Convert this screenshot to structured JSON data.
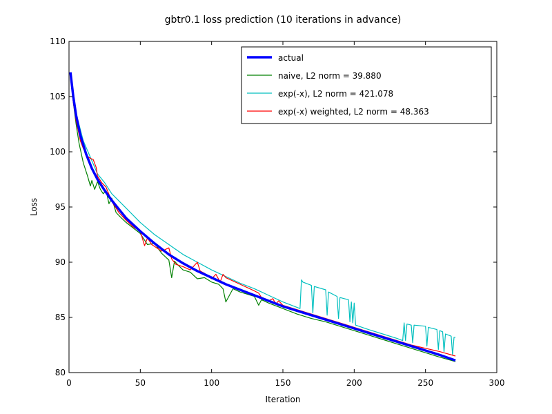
{
  "chart_data": {
    "type": "line",
    "title": "gbtr0.1 loss prediction (10 iterations in advance)",
    "xlabel": "Iteration",
    "ylabel": "Loss",
    "xlim": [
      0,
      300
    ],
    "ylim": [
      80,
      110
    ],
    "xticks": [
      0,
      50,
      100,
      150,
      200,
      250,
      300
    ],
    "yticks": [
      80,
      85,
      90,
      95,
      100,
      105,
      110
    ],
    "grid": false,
    "legend_position": "top-right",
    "series": [
      {
        "name": "actual",
        "color": "#0000ff",
        "x": [
          1,
          3,
          5,
          8,
          12,
          16,
          20,
          25,
          30,
          35,
          40,
          50,
          60,
          70,
          80,
          90,
          100,
          110,
          120,
          130,
          140,
          150,
          160,
          170,
          180,
          190,
          200,
          210,
          220,
          230,
          240,
          250,
          260,
          271
        ],
        "y": [
          107.2,
          105.0,
          103.3,
          101.5,
          99.8,
          98.5,
          97.5,
          96.5,
          95.6,
          94.8,
          94.0,
          92.8,
          91.7,
          90.7,
          89.9,
          89.2,
          88.6,
          88.0,
          87.5,
          87.0,
          86.5,
          86.0,
          85.6,
          85.2,
          84.8,
          84.4,
          84.0,
          83.6,
          83.2,
          82.8,
          82.4,
          82.0,
          81.6,
          81.1
        ]
      },
      {
        "name": "naive, L2 norm = 39.880",
        "color": "#008000",
        "x": [
          1,
          3,
          5,
          7,
          10,
          13,
          15,
          16,
          18,
          20,
          22,
          24,
          26,
          28,
          30,
          33,
          36,
          40,
          45,
          50,
          55,
          60,
          65,
          70,
          72,
          74,
          76,
          80,
          85,
          90,
          95,
          100,
          105,
          108,
          110,
          115,
          120,
          130,
          133,
          135,
          140,
          150,
          160,
          170,
          180,
          190,
          200,
          210,
          220,
          230,
          240,
          250,
          260,
          271
        ],
        "y": [
          107.0,
          104.5,
          102.5,
          100.8,
          99.0,
          97.8,
          96.9,
          97.4,
          96.6,
          97.3,
          96.6,
          96.2,
          96.5,
          95.3,
          95.8,
          94.5,
          94.1,
          93.6,
          93.1,
          92.6,
          91.6,
          91.7,
          90.8,
          90.2,
          88.6,
          90.1,
          89.8,
          89.3,
          89.1,
          88.5,
          88.6,
          88.2,
          88.0,
          87.6,
          86.4,
          87.6,
          87.3,
          86.9,
          86.1,
          86.6,
          86.3,
          85.8,
          85.3,
          84.9,
          84.6,
          84.2,
          83.8,
          83.4,
          83.0,
          82.6,
          82.2,
          81.8,
          81.4,
          81.0
        ]
      },
      {
        "name": "exp(-x), L2 norm = 421.078",
        "color": "#00bfbf",
        "x": [
          1,
          5,
          10,
          15,
          20,
          25,
          30,
          40,
          50,
          60,
          70,
          80,
          90,
          100,
          110,
          120,
          130,
          140,
          150,
          160,
          162,
          163,
          164,
          170,
          171,
          172,
          180,
          181,
          182,
          188,
          189,
          190,
          196,
          197,
          198,
          199,
          200,
          201,
          210,
          220,
          230,
          234,
          235,
          236,
          237,
          240,
          241,
          242,
          250,
          251,
          252,
          258,
          259,
          260,
          262,
          263,
          264,
          268,
          269,
          270,
          271
        ],
        "y": [
          107.0,
          103.5,
          101.0,
          99.5,
          98.0,
          97.2,
          96.2,
          94.9,
          93.6,
          92.5,
          91.6,
          90.7,
          90.0,
          89.3,
          88.7,
          88.1,
          87.6,
          87.0,
          86.4,
          85.9,
          85.8,
          88.4,
          88.2,
          87.9,
          85.4,
          87.8,
          87.5,
          85.2,
          87.3,
          86.9,
          84.9,
          86.8,
          86.6,
          84.6,
          86.4,
          84.5,
          86.3,
          84.3,
          83.9,
          83.5,
          83.1,
          82.9,
          84.5,
          82.9,
          84.4,
          84.3,
          82.7,
          84.3,
          84.2,
          82.4,
          84.1,
          83.9,
          82.1,
          83.8,
          83.7,
          81.9,
          83.5,
          83.3,
          81.6,
          83.2,
          83.2
        ]
      },
      {
        "name": "exp(-x) weighted, L2 norm = 48.363",
        "color": "#ff0000",
        "x": [
          1,
          3,
          5,
          8,
          10,
          13,
          15,
          17,
          19,
          20,
          23,
          26,
          30,
          35,
          40,
          45,
          50,
          53,
          55,
          58,
          65,
          70,
          72,
          75,
          80,
          85,
          90,
          92,
          95,
          100,
          103,
          106,
          108,
          110,
          120,
          130,
          133,
          135,
          140,
          143,
          145,
          147,
          150,
          160,
          170,
          180,
          190,
          200,
          210,
          220,
          230,
          240,
          250,
          260,
          271
        ],
        "y": [
          106.9,
          104.5,
          102.8,
          101.0,
          100.3,
          99.6,
          99.4,
          99.3,
          98.6,
          97.8,
          97.2,
          96.8,
          95.5,
          94.5,
          93.8,
          93.2,
          92.8,
          91.5,
          92.2,
          91.6,
          91.0,
          91.3,
          90.3,
          89.8,
          89.6,
          89.3,
          90.0,
          89.2,
          89.0,
          88.5,
          88.9,
          88.2,
          88.9,
          88.6,
          88.0,
          87.4,
          87.2,
          86.8,
          86.5,
          86.7,
          86.2,
          86.5,
          86.1,
          85.7,
          85.3,
          84.9,
          84.5,
          84.1,
          83.7,
          83.3,
          82.9,
          82.5,
          82.2,
          81.9,
          81.5
        ]
      }
    ]
  }
}
